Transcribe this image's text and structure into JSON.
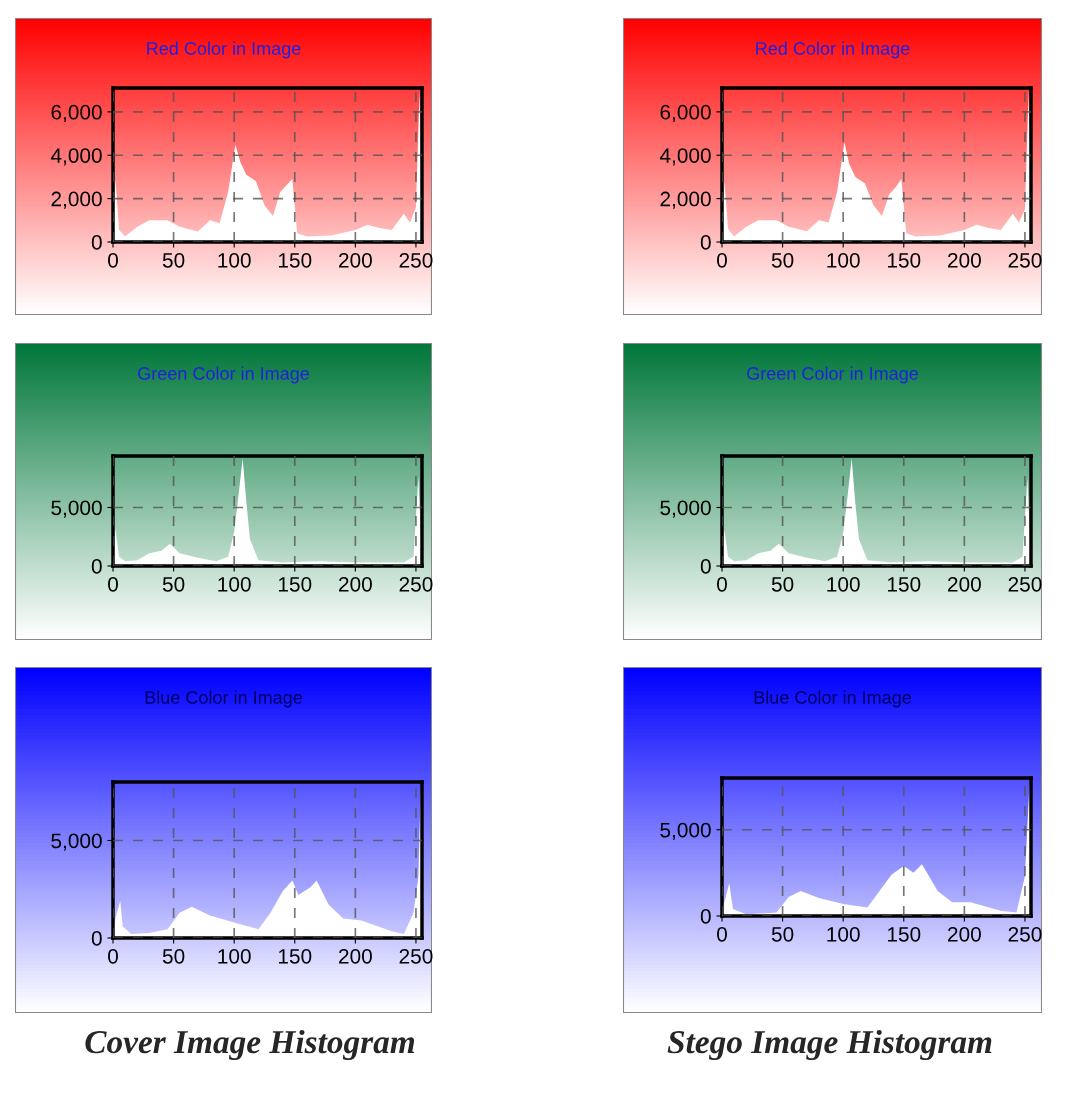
{
  "chart_data": [
    {
      "type": "area",
      "title": "Red Color in Image",
      "x": [
        0,
        2,
        5,
        10,
        20,
        30,
        45,
        55,
        70,
        80,
        88,
        95,
        101,
        105,
        110,
        118,
        125,
        132,
        138,
        143,
        148,
        152,
        160,
        180,
        200,
        210,
        220,
        230,
        240,
        245,
        250,
        253,
        255
      ],
      "series": [
        {
          "color": "#ffffff",
          "values": [
            300,
            2900,
            550,
            250,
            700,
            1000,
            1000,
            700,
            480,
            1000,
            870,
            2300,
            4500,
            3700,
            3100,
            2800,
            1700,
            1200,
            2300,
            2600,
            2900,
            400,
            250,
            300,
            550,
            800,
            650,
            550,
            1300,
            900,
            1600,
            7000,
            300
          ]
        }
      ],
      "xlim": [
        0,
        255
      ],
      "ylim": [
        0,
        7100
      ],
      "xticks": [
        0,
        50,
        100,
        150,
        200,
        250
      ],
      "yticks": [
        0,
        {
          "value": 2000,
          "label": "2,000"
        },
        {
          "value": 4000,
          "label": "4,000"
        },
        {
          "value": 6000,
          "label": "6,000"
        }
      ],
      "grid": true
    },
    {
      "type": "area",
      "title": "Red Color in Image",
      "x": [
        0,
        2,
        5,
        10,
        20,
        30,
        45,
        55,
        70,
        80,
        88,
        95,
        101,
        105,
        110,
        118,
        125,
        132,
        138,
        143,
        148,
        152,
        160,
        180,
        200,
        210,
        220,
        230,
        240,
        245,
        250,
        253,
        255
      ],
      "series": [
        {
          "color": "#ffffff",
          "values": [
            300,
            2800,
            600,
            250,
            700,
            1000,
            1000,
            700,
            500,
            1000,
            900,
            2300,
            4600,
            3600,
            3000,
            2700,
            1700,
            1200,
            2200,
            2500,
            2900,
            400,
            250,
            300,
            550,
            800,
            650,
            550,
            1300,
            900,
            1500,
            7000,
            300
          ]
        }
      ],
      "xlim": [
        0,
        255
      ],
      "ylim": [
        0,
        7100
      ],
      "xticks": [
        0,
        50,
        100,
        150,
        200,
        250
      ],
      "yticks": [
        0,
        {
          "value": 2000,
          "label": "2,000"
        },
        {
          "value": 4000,
          "label": "4,000"
        },
        {
          "value": 6000,
          "label": "6,000"
        }
      ],
      "grid": true
    },
    {
      "type": "area",
      "title": "Green Color in Image",
      "x": [
        0,
        2,
        5,
        10,
        20,
        30,
        40,
        47,
        55,
        70,
        85,
        95,
        100,
        104,
        107,
        110,
        113,
        120,
        140,
        170,
        200,
        240,
        248,
        252,
        255
      ],
      "series": [
        {
          "color": "#ffffff",
          "values": [
            500,
            3200,
            800,
            400,
            500,
            1100,
            1300,
            1900,
            1100,
            700,
            400,
            800,
            2900,
            6400,
            9200,
            5500,
            2300,
            500,
            300,
            400,
            300,
            300,
            800,
            7600,
            300
          ]
        }
      ],
      "xlim": [
        0,
        255
      ],
      "ylim": [
        0,
        9400
      ],
      "xticks": [
        0,
        50,
        100,
        150,
        200,
        250
      ],
      "yticks": [
        0,
        {
          "value": 5000,
          "label": "5,000"
        }
      ],
      "grid": true
    },
    {
      "type": "area",
      "title": "Green Color in Image",
      "x": [
        0,
        2,
        5,
        10,
        20,
        30,
        40,
        47,
        55,
        70,
        85,
        95,
        100,
        104,
        107,
        110,
        113,
        120,
        140,
        170,
        200,
        240,
        248,
        252,
        255
      ],
      "series": [
        {
          "color": "#ffffff",
          "values": [
            500,
            3100,
            800,
            400,
            500,
            1100,
            1300,
            1900,
            1100,
            700,
            400,
            800,
            2800,
            6300,
            9200,
            5400,
            2300,
            500,
            300,
            400,
            300,
            300,
            800,
            7500,
            300
          ]
        }
      ],
      "xlim": [
        0,
        255
      ],
      "ylim": [
        0,
        9400
      ],
      "xticks": [
        0,
        50,
        100,
        150,
        200,
        250
      ],
      "yticks": [
        0,
        {
          "value": 5000,
          "label": "5,000"
        }
      ],
      "grid": true
    },
    {
      "type": "area",
      "title": "Blue Color in Image",
      "x": [
        0,
        2,
        6,
        8,
        15,
        30,
        45,
        55,
        65,
        80,
        100,
        120,
        130,
        140,
        148,
        153,
        163,
        168,
        178,
        190,
        205,
        230,
        240,
        248,
        252,
        254,
        255
      ],
      "series": [
        {
          "color": "#ffffff",
          "values": [
            300,
            1000,
            1900,
            600,
            200,
            250,
            450,
            1300,
            1600,
            1150,
            800,
            450,
            1300,
            2400,
            2950,
            2200,
            2600,
            2950,
            1700,
            1000,
            900,
            350,
            200,
            1300,
            3100,
            7900,
            300
          ]
        }
      ],
      "xlim": [
        0,
        255
      ],
      "ylim": [
        0,
        8000
      ],
      "xticks": [
        0,
        50,
        100,
        150,
        200,
        250
      ],
      "yticks": [
        0,
        {
          "value": 5000,
          "label": "5,000"
        }
      ],
      "grid": true,
      "annotations": [
        "Cover Image Histogram"
      ]
    },
    {
      "type": "area",
      "title": "Blue Color in Image",
      "x": [
        0,
        2,
        6,
        9,
        20,
        45,
        55,
        65,
        80,
        100,
        120,
        130,
        140,
        150,
        158,
        165,
        178,
        190,
        205,
        230,
        243,
        250,
        254,
        255
      ],
      "series": [
        {
          "color": "#ffffff",
          "values": [
            300,
            800,
            1900,
            400,
            100,
            200,
            1100,
            1450,
            1050,
            700,
            500,
            1450,
            2400,
            2900,
            2500,
            3000,
            1450,
            800,
            800,
            300,
            200,
            2300,
            8000,
            300
          ]
        }
      ],
      "xlim": [
        0,
        255
      ],
      "ylim": [
        0,
        8000
      ],
      "xticks": [
        0,
        50,
        100,
        150,
        200,
        250
      ],
      "yticks": [
        0,
        {
          "value": 5000,
          "label": "5,000"
        }
      ],
      "grid": true,
      "annotations": [
        "Stego Image Histogram"
      ]
    }
  ]
}
